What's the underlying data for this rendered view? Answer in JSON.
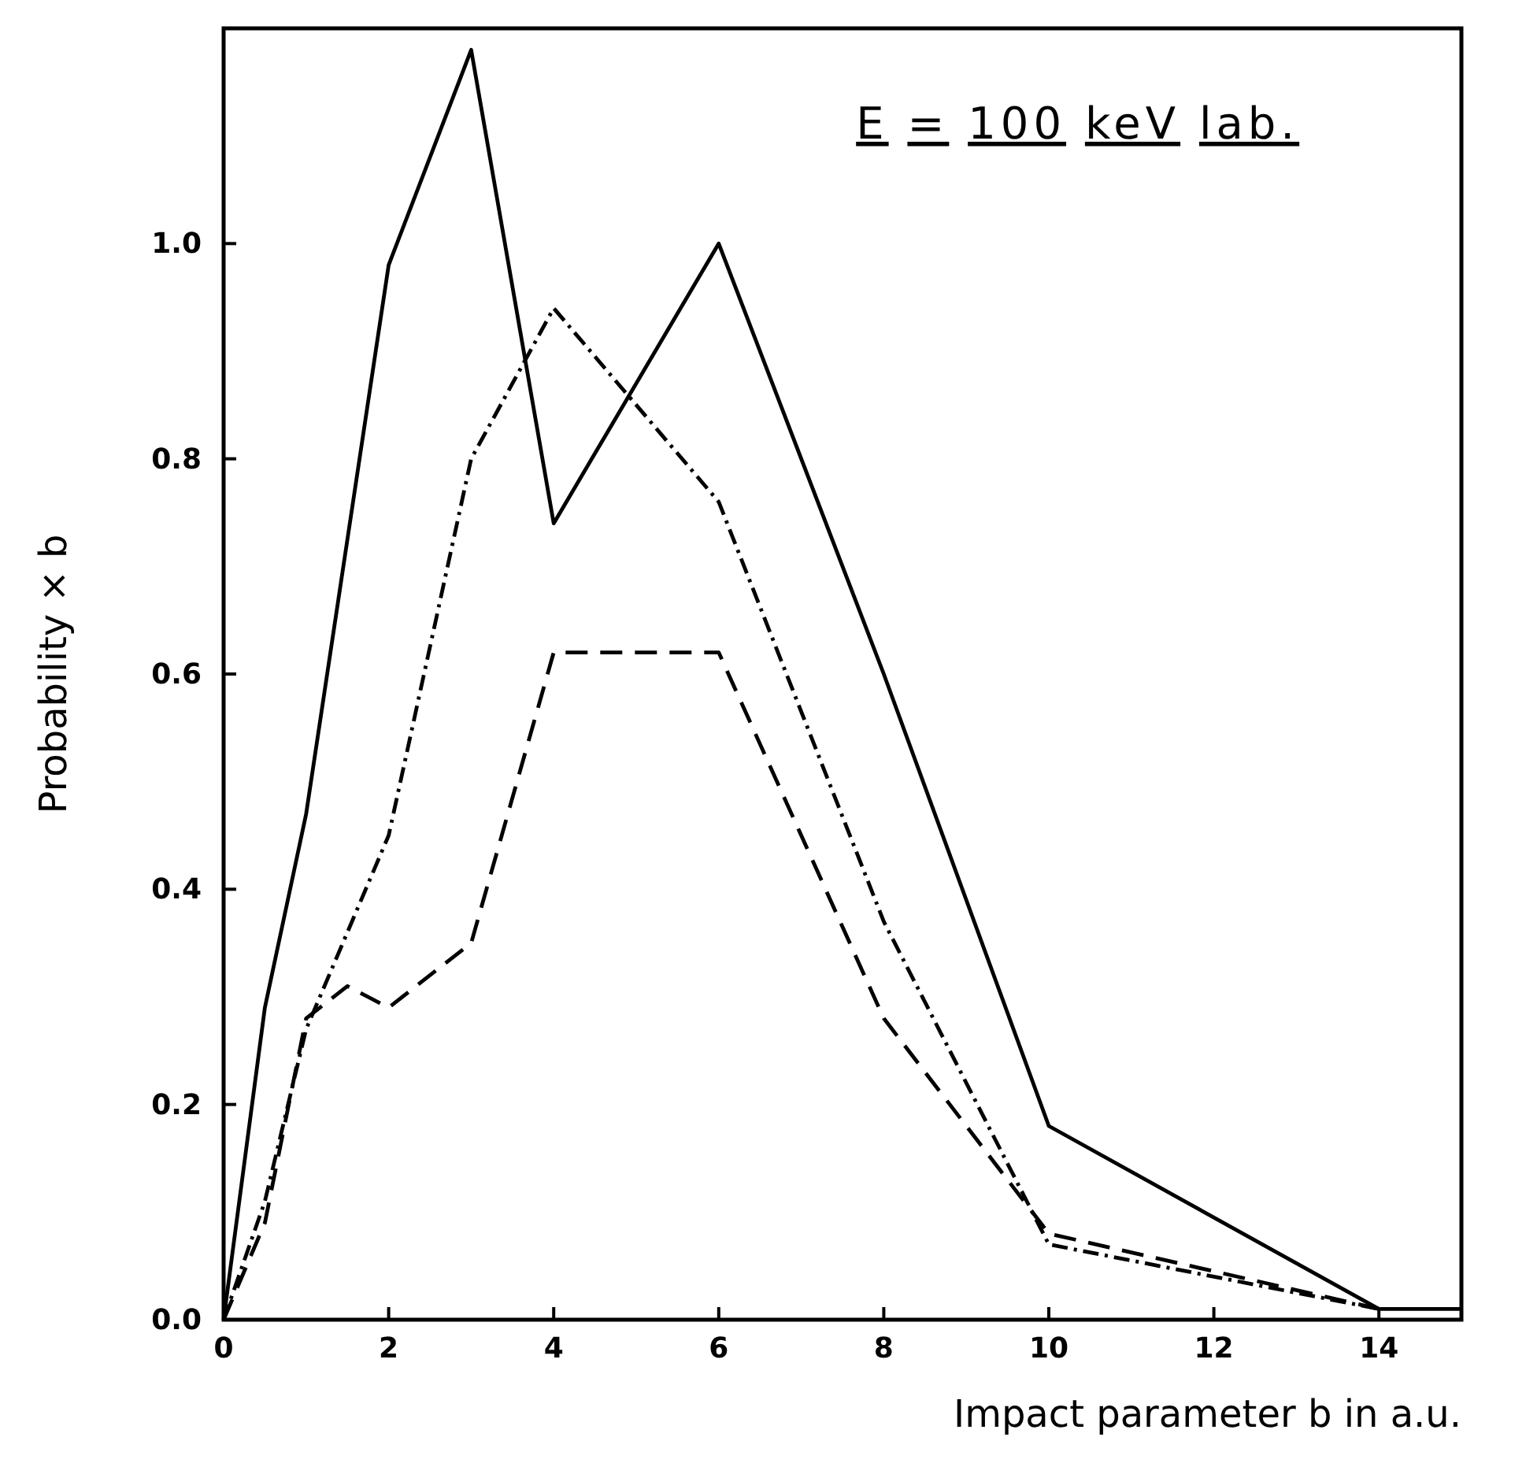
{
  "chart_data": {
    "type": "line",
    "xlabel": "Impact parameter  b  in a.u.",
    "ylabel": "Probability × b",
    "annotations": [
      "E = 100 keV lab."
    ],
    "xlim": [
      0,
      15
    ],
    "xticks": [
      0,
      2,
      4,
      6,
      8,
      10,
      12,
      14
    ],
    "ylim": [
      0,
      1.2
    ],
    "yticks": [
      {
        "value": 0,
        "label": "0.0"
      },
      {
        "value": 0.2,
        "label": "0.2"
      },
      {
        "value": 0.4,
        "label": "0.4"
      },
      {
        "value": 0.6,
        "label": "0.6"
      },
      {
        "value": 0.8,
        "label": "0.8"
      },
      {
        "value": 1,
        "label": "1.0"
      }
    ],
    "grid": false,
    "marker": "none",
    "series": [
      {
        "color": "#000000",
        "line_style": "solid",
        "x": [
          0,
          0.5,
          1,
          2,
          3,
          4,
          6,
          8,
          10,
          14,
          15
        ],
        "values": [
          0,
          0.29,
          0.47,
          0.98,
          1.18,
          0.74,
          1.0,
          0.6,
          0.18,
          0.01,
          0.01
        ]
      },
      {
        "color": "#000000",
        "line_style": "dashdot",
        "x": [
          0,
          0.5,
          1,
          2,
          3,
          4,
          6,
          8,
          10,
          14
        ],
        "values": [
          0,
          0.11,
          0.27,
          0.45,
          0.8,
          0.94,
          0.76,
          0.37,
          0.07,
          0.01
        ]
      },
      {
        "color": "#000000",
        "line_style": "dashed",
        "x": [
          0,
          0.5,
          1,
          1.5,
          2,
          3,
          4,
          6,
          8,
          10,
          14
        ],
        "values": [
          0,
          0.09,
          0.28,
          0.31,
          0.29,
          0.35,
          0.62,
          0.62,
          0.28,
          0.08,
          0.01
        ]
      }
    ]
  }
}
